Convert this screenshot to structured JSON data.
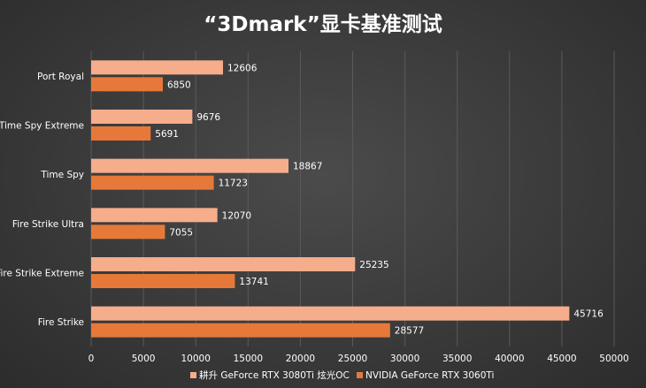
{
  "chart_data": {
    "type": "bar",
    "orientation": "horizontal",
    "title": "“3Dmark”显卡基准测试",
    "categories": [
      "Port Royal",
      "Time Spy Extreme",
      "Time Spy",
      "Fire Strike Ultra",
      "Fire Strike Extreme",
      "Fire Strike"
    ],
    "series": [
      {
        "name": "耕升 GeForce RTX 3080Ti 炫光OC",
        "color": "#f5ad8c",
        "values": [
          12606,
          9676,
          18867,
          12070,
          25235,
          45716
        ]
      },
      {
        "name": "NVIDIA GeForce RTX 3060Ti",
        "color": "#e6793a",
        "values": [
          6850,
          5691,
          11723,
          7055,
          13741,
          28577
        ]
      }
    ],
    "xlim": [
      0,
      50000
    ],
    "xticks": [
      0,
      5000,
      10000,
      15000,
      20000,
      25000,
      30000,
      35000,
      40000,
      45000,
      50000
    ],
    "grid": true,
    "legend_position": "bottom"
  }
}
